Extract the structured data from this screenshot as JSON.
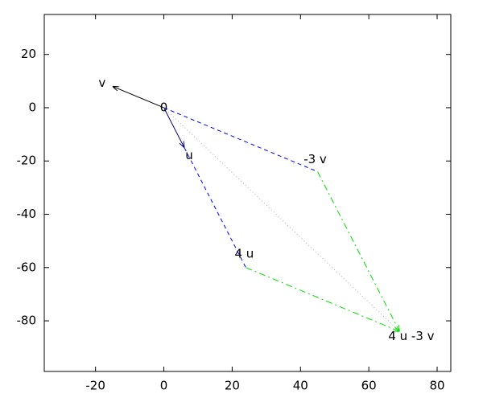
{
  "chart_data": {
    "type": "vector",
    "xlim": [
      -35,
      84
    ],
    "ylim": [
      -99,
      35
    ],
    "xticks": [
      -20,
      0,
      20,
      40,
      60,
      80
    ],
    "yticks": [
      -80,
      -60,
      -40,
      -20,
      0,
      20
    ],
    "vectors": [
      {
        "x0": 0,
        "y0": 0,
        "x1": -15,
        "y1": 8,
        "color": "#000000",
        "style": "solid",
        "arrow": true
      },
      {
        "x0": 0,
        "y0": 0,
        "x1": 6,
        "y1": -15,
        "color": "#000080",
        "style": "solid",
        "arrow": true
      },
      {
        "x0": 0,
        "y0": 0,
        "x1": 45,
        "y1": -24,
        "color": "#0000ff",
        "style": "dashed",
        "arrow": false
      },
      {
        "x0": 6,
        "y0": -15,
        "x1": 24,
        "y1": -60,
        "color": "#0000ff",
        "style": "dashed",
        "arrow": false
      },
      {
        "x0": 45,
        "y0": -24,
        "x1": 69,
        "y1": -84,
        "color": "#00dd00",
        "style": "dashdot",
        "arrow": true
      },
      {
        "x0": 24,
        "y0": -60,
        "x1": 69,
        "y1": -84,
        "color": "#00dd00",
        "style": "dashdot",
        "arrow": true
      },
      {
        "x0": 0,
        "y0": 0,
        "x1": 69,
        "y1": -84,
        "color": "#aaaaaa",
        "style": "dotted",
        "arrow": false
      }
    ],
    "labels": [
      {
        "text": "v",
        "x": -15,
        "y": 8
      },
      {
        "text": "0",
        "x": 0,
        "y": 0
      },
      {
        "text": "u",
        "x": 6,
        "y": -15
      },
      {
        "text": "-3 v",
        "x": 45,
        "y": -24
      },
      {
        "text": "4 u",
        "x": 24,
        "y": -60
      },
      {
        "text": "4 u -3 v",
        "x": 69,
        "y": -84
      }
    ]
  }
}
